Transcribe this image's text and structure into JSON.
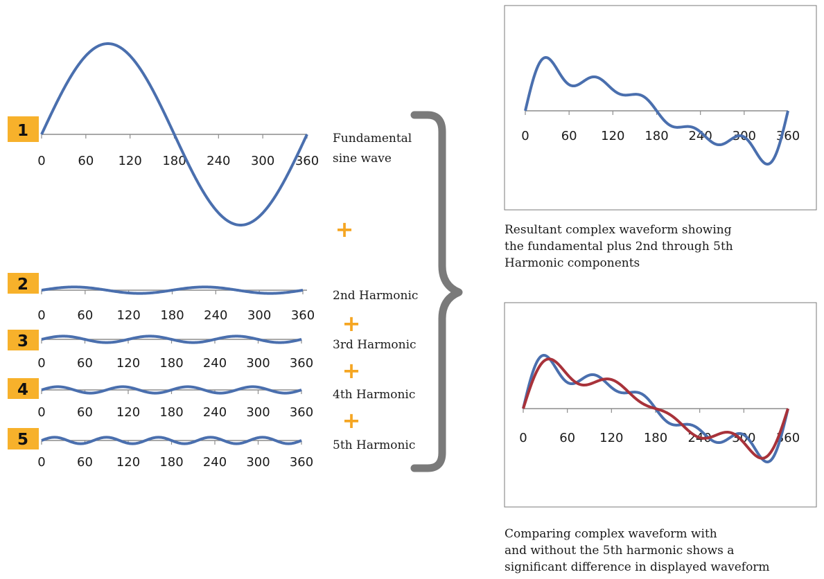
{
  "colors": {
    "wave": "#4a6fae",
    "wave_alt": "#a8323a",
    "badge": "#f7b12b",
    "plus": "#f5a623",
    "axis": "#8c8c8c",
    "brace": "#7a7a7a"
  },
  "plus_symbol": "+",
  "chart_data": [
    {
      "type": "line",
      "badge": "1",
      "label_lines": [
        "Fundamental",
        "sine wave"
      ],
      "x_ticks": [
        "0",
        "60",
        "120",
        "180",
        "240",
        "300",
        "360"
      ],
      "xlim": [
        0,
        360
      ],
      "series": [
        {
          "harmonics": [
            1
          ],
          "amplitude": 1.0
        }
      ]
    },
    {
      "type": "line",
      "badge": "2",
      "label_lines": [
        "2nd Harmonic"
      ],
      "x_ticks": [
        "0",
        "60",
        "120",
        "180",
        "240",
        "300",
        "360"
      ],
      "xlim": [
        0,
        360
      ],
      "series": [
        {
          "harmonics": [
            2
          ],
          "amplitude": 0.33
        }
      ]
    },
    {
      "type": "line",
      "badge": "3",
      "label_lines": [
        "3rd Harmonic"
      ],
      "x_ticks": [
        "0",
        "60",
        "120",
        "180",
        "240",
        "300",
        "360"
      ],
      "xlim": [
        0,
        360
      ],
      "series": [
        {
          "harmonics": [
            3
          ],
          "amplitude": 0.33
        }
      ]
    },
    {
      "type": "line",
      "badge": "4",
      "label_lines": [
        "4th Harmonic"
      ],
      "x_ticks": [
        "0",
        "60",
        "120",
        "180",
        "240",
        "300",
        "360"
      ],
      "xlim": [
        0,
        360
      ],
      "series": [
        {
          "harmonics": [
            4
          ],
          "amplitude": 0.33
        }
      ]
    },
    {
      "type": "line",
      "badge": "5",
      "label_lines": [
        "5th Harmonic"
      ],
      "x_ticks": [
        "0",
        "60",
        "120",
        "180",
        "240",
        "300",
        "360"
      ],
      "xlim": [
        0,
        360
      ],
      "series": [
        {
          "harmonics": [
            5
          ],
          "amplitude": 0.33
        }
      ]
    },
    {
      "type": "line",
      "caption_lines": [
        "Resultant complex waveform showing",
        "the fundamental plus 2nd through 5th",
        "Harmonic components"
      ],
      "x_ticks": [
        "0",
        "60",
        "120",
        "180",
        "240",
        "300",
        "360"
      ],
      "xlim": [
        0,
        360
      ],
      "series": [
        {
          "harmonics": [
            1,
            2,
            3,
            4,
            5
          ],
          "amplitude": 1.0
        }
      ]
    },
    {
      "type": "line",
      "caption_lines": [
        "Comparing complex waveform with",
        "and without the 5th harmonic shows a",
        "significant difference in displayed waveform"
      ],
      "x_ticks": [
        "0",
        "60",
        "120",
        "180",
        "240",
        "300",
        "360"
      ],
      "xlim": [
        0,
        360
      ],
      "series": [
        {
          "harmonics": [
            1,
            2,
            3,
            4,
            5
          ],
          "amplitude": 1.0
        },
        {
          "harmonics": [
            1,
            2,
            3,
            4
          ],
          "amplitude": 1.0
        }
      ]
    }
  ]
}
